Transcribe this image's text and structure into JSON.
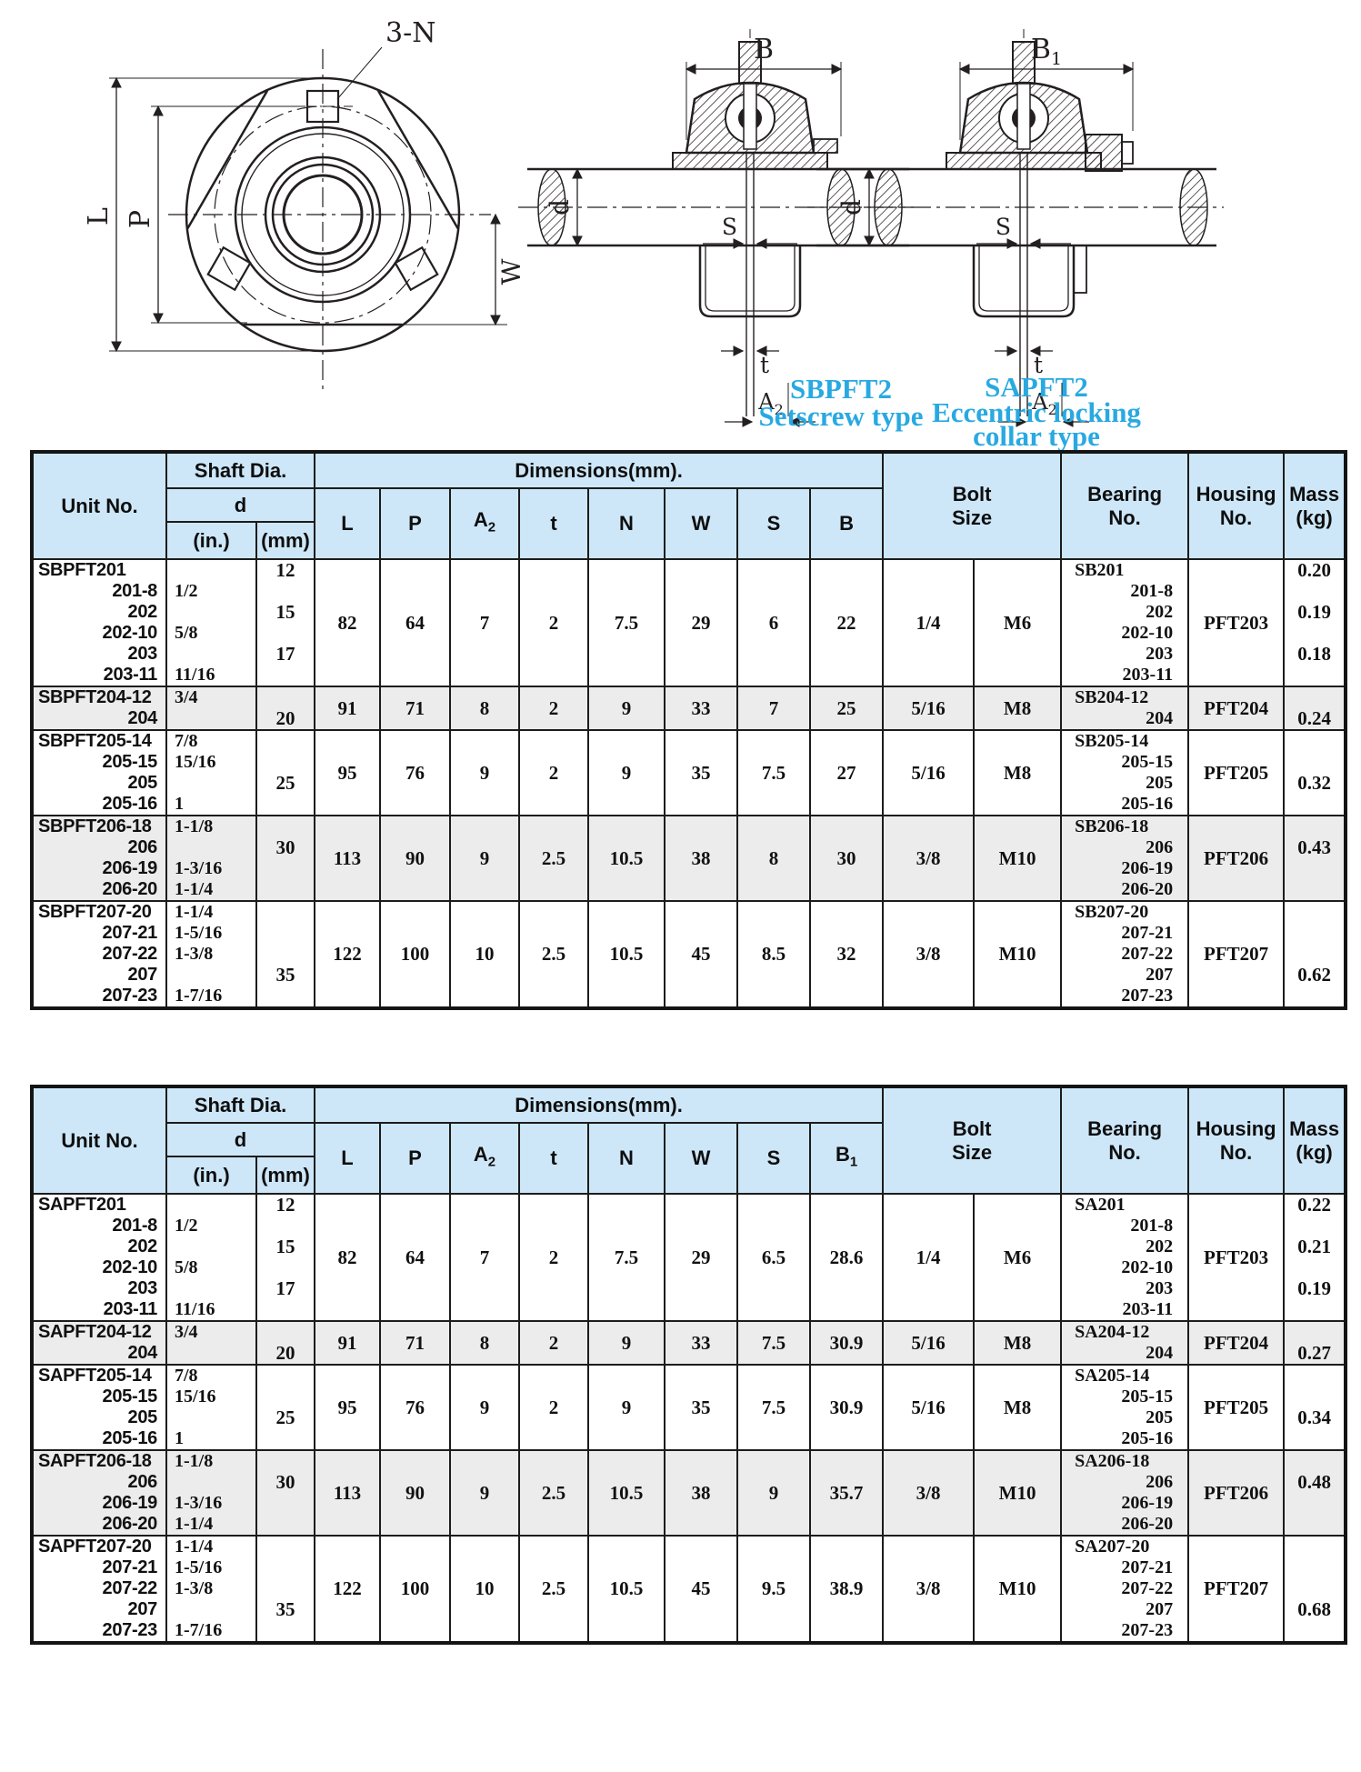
{
  "colors": {
    "header_bg": "#cde7f8",
    "shade_bg": "#ececec",
    "accent": "#29a9e1",
    "ink": "#231f20"
  },
  "drawings": {
    "front": {
      "note_3n": "3-N",
      "dim_l": "L",
      "dim_p": "P",
      "dim_w": "W"
    },
    "sb": {
      "title": "SBPFT2",
      "subtitle": "Setscrew type",
      "dim_b": "B",
      "dim_b_sub": "",
      "dim_d": "d",
      "dim_s": "S",
      "dim_t": "t",
      "dim_a": "A",
      "dim_a_sub": "2"
    },
    "sa": {
      "title": "SAPFT2",
      "subtitle": "Eccentric locking",
      "subtitle2": "collar type",
      "dim_b": "B",
      "dim_b_sub": "1",
      "dim_d": "d",
      "dim_s": "S",
      "dim_t": "t",
      "dim_a": "A",
      "dim_a_sub": "2"
    }
  },
  "tables": [
    {
      "headers": {
        "unit": "Unit No.",
        "shaft": "Shaft Dia.",
        "d": "d",
        "in": "(in.)",
        "mm": "(mm)",
        "dimensions": "Dimensions(mm).",
        "dims": [
          "L",
          "P",
          "A2",
          "t",
          "N",
          "W",
          "S",
          "B"
        ],
        "bolt": "Bolt\nSize",
        "bearing": "Bearing\nNo.",
        "housing": "Housing\nNo.",
        "mass": "Mass\n(kg)"
      },
      "rows": [
        {
          "shaded": false,
          "unit_lines": [
            "SBPFT201",
            "201-8",
            "202",
            "202-10",
            "203",
            "203-11"
          ],
          "in_lines": [
            "",
            "1/2",
            "",
            "5/8",
            "",
            "11/16"
          ],
          "mm_lines": [
            "12",
            "",
            "15",
            "",
            "17",
            ""
          ],
          "dims": [
            "82",
            "64",
            "7",
            "2",
            "7.5",
            "29",
            "6",
            "22"
          ],
          "bolt": [
            "1/4",
            "M6"
          ],
          "bearing_lines": [
            "SB201",
            "201-8",
            "202",
            "202-10",
            "203",
            "203-11"
          ],
          "housing": "PFT203",
          "mass_lines": [
            "0.20",
            "",
            "0.19",
            "",
            "0.18",
            ""
          ]
        },
        {
          "shaded": true,
          "unit_lines": [
            "SBPFT204-12",
            "204"
          ],
          "in_lines": [
            "3/4",
            ""
          ],
          "mm_lines": [
            "",
            "20"
          ],
          "dims": [
            "91",
            "71",
            "8",
            "2",
            "9",
            "33",
            "7",
            "25"
          ],
          "bolt": [
            "5/16",
            "M8"
          ],
          "bearing_lines": [
            "SB204-12",
            "204"
          ],
          "housing": "PFT204",
          "mass_lines": [
            "",
            "0.24"
          ]
        },
        {
          "shaded": false,
          "unit_lines": [
            "SBPFT205-14",
            "205-15",
            "205",
            "205-16"
          ],
          "in_lines": [
            "7/8",
            "15/16",
            "",
            "1"
          ],
          "mm_lines": [
            "",
            "",
            "25",
            ""
          ],
          "dims": [
            "95",
            "76",
            "9",
            "2",
            "9",
            "35",
            "7.5",
            "27"
          ],
          "bolt": [
            "5/16",
            "M8"
          ],
          "bearing_lines": [
            "SB205-14",
            "205-15",
            "205",
            "205-16"
          ],
          "housing": "PFT205",
          "mass_lines": [
            "",
            "",
            "0.32",
            ""
          ]
        },
        {
          "shaded": true,
          "unit_lines": [
            "SBPFT206-18",
            "206",
            "206-19",
            "206-20"
          ],
          "in_lines": [
            "1-1/8",
            "",
            "1-3/16",
            "1-1/4"
          ],
          "mm_lines": [
            "",
            "30",
            "",
            ""
          ],
          "dims": [
            "113",
            "90",
            "9",
            "2.5",
            "10.5",
            "38",
            "8",
            "30"
          ],
          "bolt": [
            "3/8",
            "M10"
          ],
          "bearing_lines": [
            "SB206-18",
            "206",
            "206-19",
            "206-20"
          ],
          "housing": "PFT206",
          "mass_lines": [
            "",
            "0.43",
            "",
            ""
          ]
        },
        {
          "shaded": false,
          "unit_lines": [
            "SBPFT207-20",
            "207-21",
            "207-22",
            "207",
            "207-23"
          ],
          "in_lines": [
            "1-1/4",
            "1-5/16",
            "1-3/8",
            "",
            "1-7/16"
          ],
          "mm_lines": [
            "",
            "",
            "",
            "35",
            ""
          ],
          "dims": [
            "122",
            "100",
            "10",
            "2.5",
            "10.5",
            "45",
            "8.5",
            "32"
          ],
          "bolt": [
            "3/8",
            "M10"
          ],
          "bearing_lines": [
            "SB207-20",
            "207-21",
            "207-22",
            "207",
            "207-23"
          ],
          "housing": "PFT207",
          "mass_lines": [
            "",
            "",
            "",
            "0.62",
            ""
          ]
        }
      ]
    },
    {
      "headers": {
        "unit": "Unit No.",
        "shaft": "Shaft Dia.",
        "d": "d",
        "in": "(in.)",
        "mm": "(mm)",
        "dimensions": "Dimensions(mm).",
        "dims": [
          "L",
          "P",
          "A2",
          "t",
          "N",
          "W",
          "S",
          "B1"
        ],
        "bolt": "Bolt\nSize",
        "bearing": "Bearing\nNo.",
        "housing": "Housing\nNo.",
        "mass": "Mass\n(kg)"
      },
      "rows": [
        {
          "shaded": false,
          "unit_lines": [
            "SAPFT201",
            "201-8",
            "202",
            "202-10",
            "203",
            "203-11"
          ],
          "in_lines": [
            "",
            "1/2",
            "",
            "5/8",
            "",
            "11/16"
          ],
          "mm_lines": [
            "12",
            "",
            "15",
            "",
            "17",
            ""
          ],
          "dims": [
            "82",
            "64",
            "7",
            "2",
            "7.5",
            "29",
            "6.5",
            "28.6"
          ],
          "bolt": [
            "1/4",
            "M6"
          ],
          "bearing_lines": [
            "SA201",
            "201-8",
            "202",
            "202-10",
            "203",
            "203-11"
          ],
          "housing": "PFT203",
          "mass_lines": [
            "0.22",
            "",
            "0.21",
            "",
            "0.19",
            ""
          ]
        },
        {
          "shaded": true,
          "unit_lines": [
            "SAPFT204-12",
            "204"
          ],
          "in_lines": [
            "3/4",
            ""
          ],
          "mm_lines": [
            "",
            "20"
          ],
          "dims": [
            "91",
            "71",
            "8",
            "2",
            "9",
            "33",
            "7.5",
            "30.9"
          ],
          "bolt": [
            "5/16",
            "M8"
          ],
          "bearing_lines": [
            "SA204-12",
            "204"
          ],
          "housing": "PFT204",
          "mass_lines": [
            "",
            "0.27"
          ]
        },
        {
          "shaded": false,
          "unit_lines": [
            "SAPFT205-14",
            "205-15",
            "205",
            "205-16"
          ],
          "in_lines": [
            "7/8",
            "15/16",
            "",
            "1"
          ],
          "mm_lines": [
            "",
            "",
            "25",
            ""
          ],
          "dims": [
            "95",
            "76",
            "9",
            "2",
            "9",
            "35",
            "7.5",
            "30.9"
          ],
          "bolt": [
            "5/16",
            "M8"
          ],
          "bearing_lines": [
            "SA205-14",
            "205-15",
            "205",
            "205-16"
          ],
          "housing": "PFT205",
          "mass_lines": [
            "",
            "",
            "0.34",
            ""
          ]
        },
        {
          "shaded": true,
          "unit_lines": [
            "SAPFT206-18",
            "206",
            "206-19",
            "206-20"
          ],
          "in_lines": [
            "1-1/8",
            "",
            "1-3/16",
            "1-1/4"
          ],
          "mm_lines": [
            "",
            "30",
            "",
            ""
          ],
          "dims": [
            "113",
            "90",
            "9",
            "2.5",
            "10.5",
            "38",
            "9",
            "35.7"
          ],
          "bolt": [
            "3/8",
            "M10"
          ],
          "bearing_lines": [
            "SA206-18",
            "206",
            "206-19",
            "206-20"
          ],
          "housing": "PFT206",
          "mass_lines": [
            "",
            "0.48",
            "",
            ""
          ]
        },
        {
          "shaded": false,
          "unit_lines": [
            "SAPFT207-20",
            "207-21",
            "207-22",
            "207",
            "207-23"
          ],
          "in_lines": [
            "1-1/4",
            "1-5/16",
            "1-3/8",
            "",
            "1-7/16"
          ],
          "mm_lines": [
            "",
            "",
            "",
            "35",
            ""
          ],
          "dims": [
            "122",
            "100",
            "10",
            "2.5",
            "10.5",
            "45",
            "9.5",
            "38.9"
          ],
          "bolt": [
            "3/8",
            "M10"
          ],
          "bearing_lines": [
            "SA207-20",
            "207-21",
            "207-22",
            "207",
            "207-23"
          ],
          "housing": "PFT207",
          "mass_lines": [
            "",
            "",
            "",
            "0.68",
            ""
          ]
        }
      ]
    }
  ]
}
